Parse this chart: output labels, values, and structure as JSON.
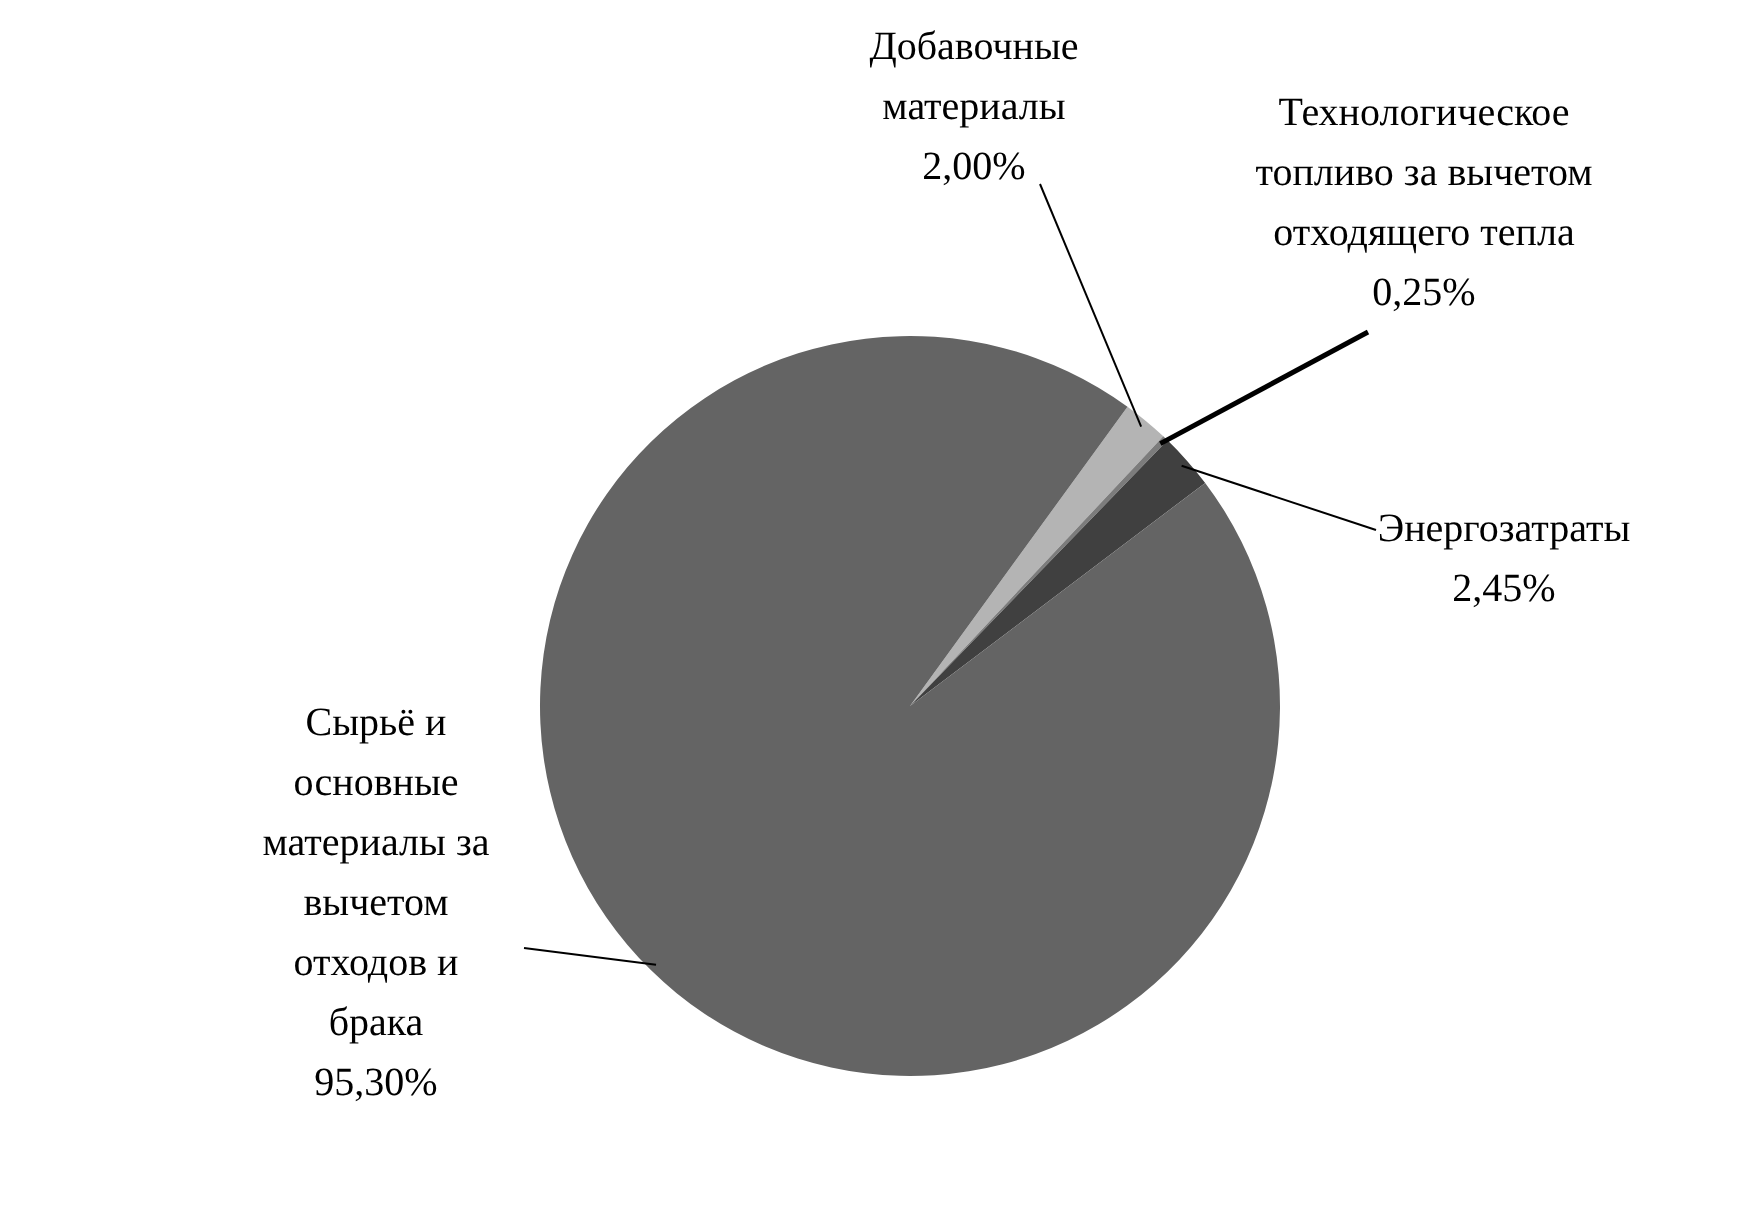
{
  "chart_data": {
    "type": "pie",
    "categories": [
      "Добавочные материалы",
      "Технологическое топливо за вычетом отходящего тепла",
      "Энергозатраты",
      "Сырьё и основные материалы за вычетом отходов и брака"
    ],
    "values": [
      2.0,
      0.25,
      2.45,
      95.3
    ],
    "colors": [
      "#b4b4b4",
      "#7c7c7c",
      "#404040",
      "#646464"
    ],
    "value_labels": [
      "2,00%",
      "0,25%",
      "2,45%",
      "95,30%"
    ],
    "legend": false
  }
}
